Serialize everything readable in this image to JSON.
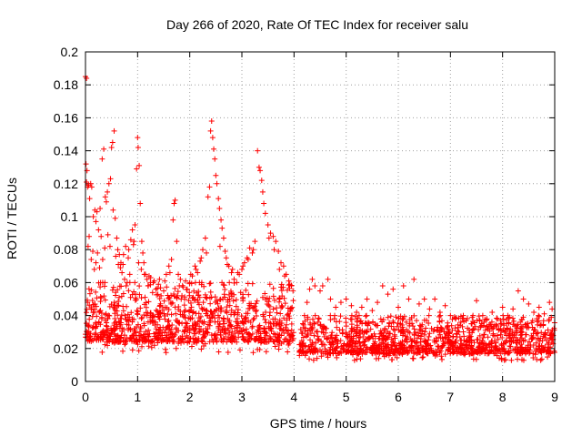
{
  "chart_data": {
    "type": "scatter",
    "title": "Day 266 of 2020, Rate Of TEC Index for receiver salu",
    "xlabel": "GPS time / hours",
    "ylabel": "ROTI / TECUs",
    "xlim": [
      0,
      9
    ],
    "ylim": [
      0,
      0.2
    ],
    "x_ticks": [
      "0",
      "1",
      "2",
      "3",
      "4",
      "5",
      "6",
      "7",
      "8",
      "9"
    ],
    "y_ticks": [
      "0",
      "0.02",
      "0.04",
      "0.06",
      "0.08",
      "0.1",
      "0.12",
      "0.14",
      "0.16",
      "0.18",
      "0.2"
    ],
    "grid": true,
    "marker": "plus",
    "color": "#ff0000",
    "series": [
      {
        "points": [
          [
            0.0,
            0.185
          ],
          [
            0.02,
            0.184
          ],
          [
            0.01,
            0.132
          ],
          [
            0.03,
            0.128
          ],
          [
            0.02,
            0.121
          ],
          [
            0.04,
            0.118
          ],
          [
            0.06,
            0.119
          ],
          [
            0.08,
            0.111
          ],
          [
            0.1,
            0.12
          ],
          [
            0.12,
            0.118
          ],
          [
            0.15,
            0.1
          ],
          [
            0.18,
            0.104
          ],
          [
            0.2,
            0.097
          ],
          [
            0.22,
            0.103
          ],
          [
            0.25,
            0.092
          ],
          [
            0.28,
            0.105
          ],
          [
            0.3,
            0.088
          ],
          [
            0.32,
            0.135
          ],
          [
            0.35,
            0.141
          ],
          [
            0.38,
            0.112
          ],
          [
            0.4,
            0.109
          ],
          [
            0.42,
            0.115
          ],
          [
            0.45,
            0.12
          ],
          [
            0.48,
            0.123
          ],
          [
            0.5,
            0.142
          ],
          [
            0.52,
            0.145
          ],
          [
            0.55,
            0.152
          ],
          [
            0.53,
            0.104
          ],
          [
            0.57,
            0.099
          ],
          [
            0.6,
            0.087
          ],
          [
            0.62,
            0.08
          ],
          [
            0.65,
            0.077
          ],
          [
            0.68,
            0.072
          ],
          [
            0.7,
            0.066
          ],
          [
            0.72,
            0.071
          ],
          [
            0.75,
            0.062
          ],
          [
            0.78,
            0.058
          ],
          [
            0.8,
            0.06
          ],
          [
            0.82,
            0.075
          ],
          [
            0.85,
            0.065
          ],
          [
            0.9,
            0.092
          ],
          [
            0.93,
            0.085
          ],
          [
            0.95,
            0.095
          ],
          [
            0.98,
            0.129
          ],
          [
            1.0,
            0.148
          ],
          [
            1.01,
            0.142
          ],
          [
            1.03,
            0.131
          ],
          [
            1.05,
            0.108
          ],
          [
            1.08,
            0.085
          ],
          [
            1.1,
            0.078
          ],
          [
            1.12,
            0.072
          ],
          [
            1.15,
            0.065
          ],
          [
            1.18,
            0.062
          ],
          [
            1.2,
            0.058
          ],
          [
            1.25,
            0.063
          ],
          [
            1.3,
            0.06
          ],
          [
            1.35,
            0.056
          ],
          [
            1.4,
            0.059
          ],
          [
            1.45,
            0.052
          ],
          [
            1.5,
            0.055
          ],
          [
            1.55,
            0.065
          ],
          [
            1.6,
            0.07
          ],
          [
            1.65,
            0.074
          ],
          [
            1.68,
            0.098
          ],
          [
            1.7,
            0.108
          ],
          [
            1.72,
            0.11
          ],
          [
            1.75,
            0.085
          ],
          [
            1.78,
            0.065
          ],
          [
            1.8,
            0.058
          ],
          [
            1.85,
            0.052
          ],
          [
            1.9,
            0.05
          ],
          [
            1.95,
            0.056
          ],
          [
            2.0,
            0.06
          ],
          [
            2.05,
            0.064
          ],
          [
            2.1,
            0.07
          ],
          [
            2.15,
            0.066
          ],
          [
            2.2,
            0.073
          ],
          [
            2.25,
            0.08
          ],
          [
            2.3,
            0.087
          ],
          [
            2.35,
            0.112
          ],
          [
            2.38,
            0.118
          ],
          [
            2.4,
            0.152
          ],
          [
            2.42,
            0.158
          ],
          [
            2.44,
            0.148
          ],
          [
            2.46,
            0.141
          ],
          [
            2.48,
            0.135
          ],
          [
            2.5,
            0.125
          ],
          [
            2.52,
            0.12
          ],
          [
            2.55,
            0.111
          ],
          [
            2.57,
            0.105
          ],
          [
            2.6,
            0.098
          ],
          [
            2.62,
            0.093
          ],
          [
            2.65,
            0.087
          ],
          [
            2.68,
            0.079
          ],
          [
            2.7,
            0.075
          ],
          [
            2.75,
            0.07
          ],
          [
            2.8,
            0.066
          ],
          [
            2.85,
            0.062
          ],
          [
            2.9,
            0.06
          ],
          [
            2.95,
            0.065
          ],
          [
            3.0,
            0.068
          ],
          [
            3.05,
            0.072
          ],
          [
            3.1,
            0.075
          ],
          [
            3.15,
            0.081
          ],
          [
            3.2,
            0.078
          ],
          [
            3.25,
            0.085
          ],
          [
            3.3,
            0.14
          ],
          [
            3.33,
            0.13
          ],
          [
            3.35,
            0.128
          ],
          [
            3.38,
            0.122
          ],
          [
            3.4,
            0.115
          ],
          [
            3.42,
            0.108
          ],
          [
            3.45,
            0.102
          ],
          [
            3.5,
            0.095
          ],
          [
            3.55,
            0.09
          ],
          [
            3.6,
            0.088
          ],
          [
            3.65,
            0.085
          ],
          [
            3.7,
            0.079
          ],
          [
            3.75,
            0.072
          ],
          [
            3.8,
            0.07
          ],
          [
            3.85,
            0.065
          ],
          [
            3.9,
            0.061
          ],
          [
            3.95,
            0.058
          ],
          [
            4.25,
            0.048
          ],
          [
            4.3,
            0.056
          ],
          [
            4.35,
            0.062
          ],
          [
            4.4,
            0.058
          ],
          [
            4.5,
            0.055
          ],
          [
            4.55,
            0.058
          ],
          [
            4.65,
            0.062
          ],
          [
            4.7,
            0.05
          ],
          [
            4.8,
            0.045
          ],
          [
            4.9,
            0.048
          ],
          [
            5.0,
            0.05
          ],
          [
            5.1,
            0.046
          ],
          [
            5.2,
            0.042
          ],
          [
            5.3,
            0.045
          ],
          [
            5.4,
            0.05
          ],
          [
            5.5,
            0.043
          ],
          [
            5.6,
            0.048
          ],
          [
            5.7,
            0.058
          ],
          [
            5.8,
            0.053
          ],
          [
            5.9,
            0.056
          ],
          [
            6.0,
            0.045
          ],
          [
            6.1,
            0.058
          ],
          [
            6.2,
            0.05
          ],
          [
            6.3,
            0.062
          ],
          [
            6.4,
            0.047
          ],
          [
            6.5,
            0.05
          ],
          [
            6.6,
            0.044
          ],
          [
            6.7,
            0.05
          ],
          [
            6.8,
            0.042
          ],
          [
            6.9,
            0.046
          ],
          [
            7.0,
            0.04
          ],
          [
            7.1,
            0.038
          ],
          [
            7.2,
            0.036
          ],
          [
            7.3,
            0.037
          ],
          [
            7.4,
            0.035
          ],
          [
            7.5,
            0.049
          ],
          [
            7.6,
            0.034
          ],
          [
            7.7,
            0.038
          ],
          [
            7.8,
            0.042
          ],
          [
            7.9,
            0.038
          ],
          [
            8.0,
            0.045
          ],
          [
            8.1,
            0.04
          ],
          [
            8.2,
            0.044
          ],
          [
            8.3,
            0.055
          ],
          [
            8.4,
            0.05
          ],
          [
            8.5,
            0.047
          ],
          [
            8.6,
            0.042
          ],
          [
            8.7,
            0.045
          ],
          [
            8.8,
            0.041
          ],
          [
            8.9,
            0.048
          ],
          [
            8.95,
            0.044
          ],
          [
            0.05,
            0.082
          ],
          [
            0.07,
            0.088
          ],
          [
            0.11,
            0.074
          ],
          [
            0.14,
            0.079
          ],
          [
            0.17,
            0.068
          ],
          [
            0.2,
            0.072
          ],
          [
            0.23,
            0.078
          ],
          [
            0.27,
            0.069
          ],
          [
            0.33,
            0.074
          ],
          [
            0.37,
            0.081
          ],
          [
            0.43,
            0.089
          ],
          [
            0.47,
            0.082
          ],
          [
            0.58,
            0.076
          ],
          [
            0.63,
            0.071
          ],
          [
            0.67,
            0.069
          ],
          [
            0.73,
            0.077
          ],
          [
            0.77,
            0.082
          ],
          [
            0.83,
            0.08
          ],
          [
            0.87,
            0.086
          ],
          [
            0.92,
            0.083
          ],
          [
            1.02,
            0.072
          ],
          [
            1.07,
            0.068
          ],
          [
            1.13,
            0.065
          ],
          [
            1.22,
            0.064
          ],
          [
            1.32,
            0.061
          ],
          [
            1.42,
            0.062
          ],
          [
            1.52,
            0.061
          ],
          [
            1.62,
            0.066
          ],
          [
            1.82,
            0.062
          ],
          [
            1.92,
            0.061
          ],
          [
            2.02,
            0.065
          ],
          [
            2.12,
            0.068
          ],
          [
            2.22,
            0.075
          ],
          [
            2.32,
            0.078
          ],
          [
            2.58,
            0.082
          ],
          [
            2.72,
            0.071
          ],
          [
            2.82,
            0.068
          ],
          [
            2.92,
            0.066
          ],
          [
            3.02,
            0.07
          ],
          [
            3.12,
            0.074
          ],
          [
            3.22,
            0.08
          ],
          [
            3.52,
            0.087
          ],
          [
            3.62,
            0.08
          ],
          [
            3.72,
            0.068
          ],
          [
            3.82,
            0.064
          ],
          [
            3.92,
            0.059
          ],
          [
            3.98,
            0.055
          ]
        ],
        "band_cloud": {
          "segments": [
            {
              "x_from": 0.0,
              "x_to": 4.0,
              "y_low": 0.01,
              "y_high": 0.06
            },
            {
              "x_from": 4.1,
              "x_to": 9.0,
              "y_low": 0.008,
              "y_high": 0.04
            }
          ]
        }
      }
    ]
  }
}
